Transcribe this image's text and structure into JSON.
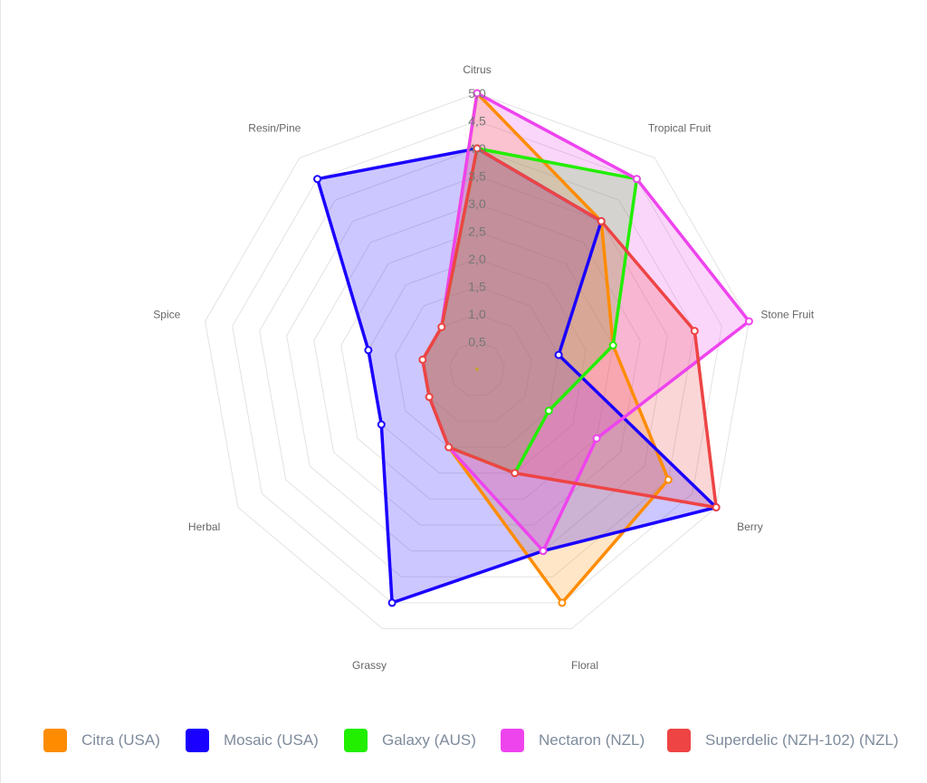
{
  "chart_data": {
    "type": "radar",
    "axes": [
      "Citrus",
      "Tropical Fruit",
      "Stone Fruit",
      "Berry",
      "Floral",
      "Grassy",
      "Herbal",
      "Spice",
      "Resin/Pine"
    ],
    "r_range": [
      0,
      5
    ],
    "ticks": [
      "0,5",
      "1,0",
      "1,5",
      "2,0",
      "2,5",
      "3,0",
      "3,5",
      "4,0",
      "4,5",
      "5,0"
    ],
    "tick_values": [
      0.5,
      1.0,
      1.5,
      2.0,
      2.5,
      3.0,
      3.5,
      4.0,
      4.5,
      5.0
    ],
    "grid": true,
    "legend_position": "bottom",
    "series": [
      {
        "name": "Citra (USA)",
        "color": "#ff8c00",
        "values": [
          5.0,
          3.5,
          2.5,
          4.0,
          4.5,
          1.5,
          1.0,
          1.0,
          1.0
        ]
      },
      {
        "name": "Mosaic (USA)",
        "color": "#1a00ff",
        "values": [
          4.0,
          3.5,
          1.5,
          5.0,
          3.5,
          4.5,
          2.0,
          2.0,
          4.5
        ]
      },
      {
        "name": "Galaxy (AUS)",
        "color": "#22ee00",
        "values": [
          4.0,
          4.5,
          2.5,
          1.5,
          2.0,
          1.5,
          1.0,
          1.0,
          1.0
        ]
      },
      {
        "name": "Nectaron (NZL)",
        "color": "#ee44ee",
        "values": [
          5.0,
          4.5,
          5.0,
          2.5,
          3.5,
          1.5,
          1.0,
          1.0,
          1.0
        ]
      },
      {
        "name": "Superdelic (NZH-102) (NZL)",
        "color": "#ee4444",
        "values": [
          4.0,
          3.5,
          4.0,
          5.0,
          2.0,
          1.5,
          1.0,
          1.0,
          1.0
        ]
      }
    ]
  }
}
